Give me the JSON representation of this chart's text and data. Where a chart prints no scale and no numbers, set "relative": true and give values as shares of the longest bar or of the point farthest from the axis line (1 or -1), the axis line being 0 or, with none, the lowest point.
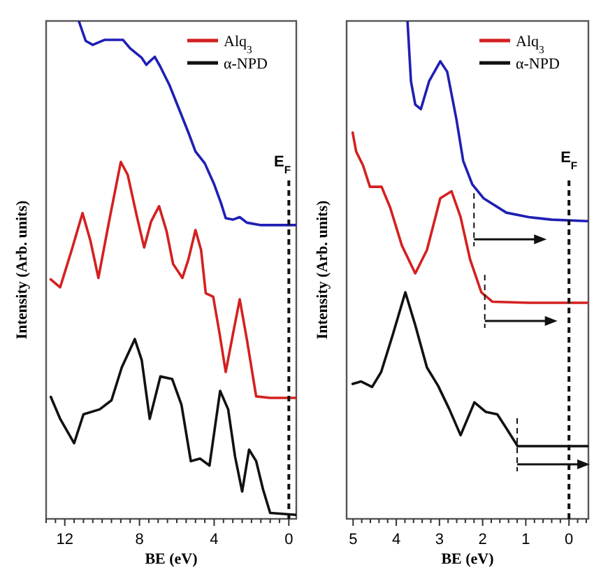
{
  "chart_data": [
    {
      "type": "line",
      "relative": true,
      "xlabel": "BE (eV)",
      "ylabel": "Intensity (Arb. units)",
      "legend": "top right",
      "xlim": [
        13,
        -0.4
      ],
      "xticks": [
        {
          "value": 13,
          "label": null
        },
        {
          "value": 12.5,
          "label": null
        },
        12,
        {
          "value": 11.5,
          "label": null
        },
        {
          "value": 11,
          "label": null
        },
        {
          "value": 10.5,
          "label": null
        },
        {
          "value": 10,
          "label": null
        },
        {
          "value": 9.5,
          "label": null
        },
        {
          "value": 9,
          "label": null
        },
        {
          "value": 8.5,
          "label": null
        },
        8,
        {
          "value": 7.5,
          "label": null
        },
        {
          "value": 7,
          "label": null
        },
        {
          "value": 6.5,
          "label": null
        },
        {
          "value": 6,
          "label": null
        },
        {
          "value": 5.5,
          "label": null
        },
        {
          "value": 5,
          "label": null
        },
        {
          "value": 4.5,
          "label": null
        },
        4,
        {
          "value": 3.5,
          "label": null
        },
        {
          "value": 3,
          "label": null
        },
        {
          "value": 2.5,
          "label": null
        },
        {
          "value": 2,
          "label": null
        },
        {
          "value": 1.5,
          "label": null
        },
        {
          "value": 1,
          "label": null
        },
        {
          "value": 0.5,
          "label": null
        },
        0
      ],
      "series": [
        {
          "color": "#1f1fb4",
          "x": [
            11.25,
            10.88,
            10.5,
            9.88,
            8.88,
            8.5,
            7.88,
            7.63,
            7.5,
            7.18,
            6.88,
            6.38,
            5.88,
            5.38,
            5.0,
            4.5,
            4.0,
            3.63,
            3.38,
            3.0,
            2.63,
            2.25,
            1.5,
            0.75,
            -0.38
          ],
          "values": [
            1.0,
            0.96,
            0.952,
            0.962,
            0.962,
            0.945,
            0.926,
            0.912,
            0.917,
            0.928,
            0.908,
            0.87,
            0.823,
            0.776,
            0.738,
            0.714,
            0.672,
            0.634,
            0.604,
            0.601,
            0.606,
            0.595,
            0.59,
            0.59,
            0.59
          ]
        },
        {
          "name": "Alq$_{3}$",
          "color": "#d42020",
          "x": [
            12.75,
            12.25,
            11.63,
            11.05,
            10.63,
            10.2,
            9.63,
            9.0,
            8.63,
            8.13,
            7.75,
            7.38,
            6.95,
            6.55,
            6.2,
            5.7,
            5.38,
            5.0,
            4.7,
            4.45,
            4.05,
            3.7,
            3.38,
            3.0,
            2.63,
            2.25,
            1.75,
            1.0,
            -0.38
          ],
          "values": [
            0.481,
            0.465,
            0.54,
            0.614,
            0.559,
            0.484,
            0.597,
            0.717,
            0.691,
            0.606,
            0.545,
            0.597,
            0.628,
            0.578,
            0.512,
            0.484,
            0.521,
            0.58,
            0.54,
            0.453,
            0.446,
            0.37,
            0.295,
            0.37,
            0.441,
            0.361,
            0.246,
            0.243,
            0.243
          ]
        },
        {
          "name": "α-NPD",
          "color": "#111111",
          "x": [
            12.75,
            12.25,
            11.5,
            11.0,
            10.13,
            9.5,
            8.95,
            8.25,
            7.88,
            7.45,
            6.88,
            6.25,
            5.75,
            5.25,
            4.75,
            4.25,
            3.68,
            3.25,
            2.88,
            2.5,
            2.13,
            1.75,
            1.38,
            1.0,
            -0.38
          ],
          "values": [
            0.245,
            0.201,
            0.152,
            0.21,
            0.22,
            0.238,
            0.304,
            0.361,
            0.319,
            0.201,
            0.286,
            0.281,
            0.229,
            0.116,
            0.121,
            0.107,
            0.257,
            0.22,
            0.125,
            0.055,
            0.139,
            0.116,
            0.059,
            0.012,
            0.008
          ]
        }
      ],
      "ref_lines": [
        {
          "axis": "x",
          "value": 0,
          "label": "E$_{F}$",
          "line_style": "dashed",
          "color": "#111111"
        }
      ]
    },
    {
      "type": "line",
      "relative": true,
      "xlabel": "BE (eV)",
      "ylabel": "Intensity (Arb. units)",
      "legend": "top right",
      "xlim": [
        5.15,
        -0.45
      ],
      "xticks": [
        5,
        {
          "value": 4.8,
          "label": null
        },
        {
          "value": 4.6,
          "label": null
        },
        {
          "value": 4.4,
          "label": null
        },
        {
          "value": 4.2,
          "label": null
        },
        4,
        {
          "value": 3.8,
          "label": null
        },
        {
          "value": 3.6,
          "label": null
        },
        {
          "value": 3.4,
          "label": null
        },
        {
          "value": 3.2,
          "label": null
        },
        3,
        {
          "value": 2.8,
          "label": null
        },
        {
          "value": 2.6,
          "label": null
        },
        {
          "value": 2.4,
          "label": null
        },
        {
          "value": 2.2,
          "label": null
        },
        2,
        {
          "value": 1.8,
          "label": null
        },
        {
          "value": 1.6,
          "label": null
        },
        {
          "value": 1.4,
          "label": null
        },
        {
          "value": 1.2,
          "label": null
        },
        1,
        {
          "value": 0.8,
          "label": null
        },
        {
          "value": 0.6,
          "label": null
        },
        {
          "value": 0.4,
          "label": null
        },
        {
          "value": 0.2,
          "label": null
        },
        0,
        {
          "value": -0.2,
          "label": null
        },
        {
          "value": -0.4,
          "label": null
        }
      ],
      "series": [
        {
          "color": "#1f1fb4",
          "x": [
            3.74,
            3.66,
            3.56,
            3.43,
            3.24,
            2.98,
            2.82,
            2.61,
            2.45,
            2.24,
            1.98,
            1.45,
            0.93,
            0.4,
            -0.44
          ],
          "values": [
            1.0,
            0.879,
            0.832,
            0.823,
            0.879,
            0.919,
            0.898,
            0.804,
            0.719,
            0.672,
            0.644,
            0.615,
            0.606,
            0.601,
            0.598
          ]
        },
        {
          "name": "Alq$_{3}$",
          "color": "#d42020",
          "x": [
            5.01,
            4.93,
            4.77,
            4.61,
            4.34,
            4.14,
            3.87,
            3.56,
            3.29,
            2.98,
            2.72,
            2.51,
            2.29,
            2.03,
            1.77,
            0.93,
            -0.44
          ],
          "values": [
            0.776,
            0.738,
            0.71,
            0.667,
            0.667,
            0.625,
            0.549,
            0.493,
            0.54,
            0.644,
            0.658,
            0.606,
            0.521,
            0.455,
            0.436,
            0.434,
            0.434
          ]
        },
        {
          "name": "α-NPD",
          "color": "#111111",
          "x": [
            5.01,
            4.82,
            4.56,
            4.35,
            4.08,
            3.79,
            3.56,
            3.29,
            3.03,
            2.77,
            2.51,
            2.19,
            1.93,
            1.66,
            1.45,
            1.19,
            0.72,
            -0.44
          ],
          "values": [
            0.271,
            0.276,
            0.265,
            0.295,
            0.37,
            0.455,
            0.389,
            0.304,
            0.267,
            0.22,
            0.168,
            0.234,
            0.215,
            0.21,
            0.182,
            0.146,
            0.146,
            0.146
          ]
        }
      ],
      "ref_lines": [
        {
          "axis": "x",
          "value": 0,
          "label": "E$_{F}$",
          "line_style": "dashed",
          "color": "#111111"
        },
        {
          "axis": "x",
          "value": 2.2,
          "line_style": "dashed",
          "color": "#111111"
        },
        {
          "axis": "x",
          "value": 1.95,
          "line_style": "dashed",
          "color": "#111111"
        },
        {
          "axis": "x",
          "value": 1.2,
          "line_style": "dashed",
          "color": "#111111"
        }
      ]
    }
  ]
}
